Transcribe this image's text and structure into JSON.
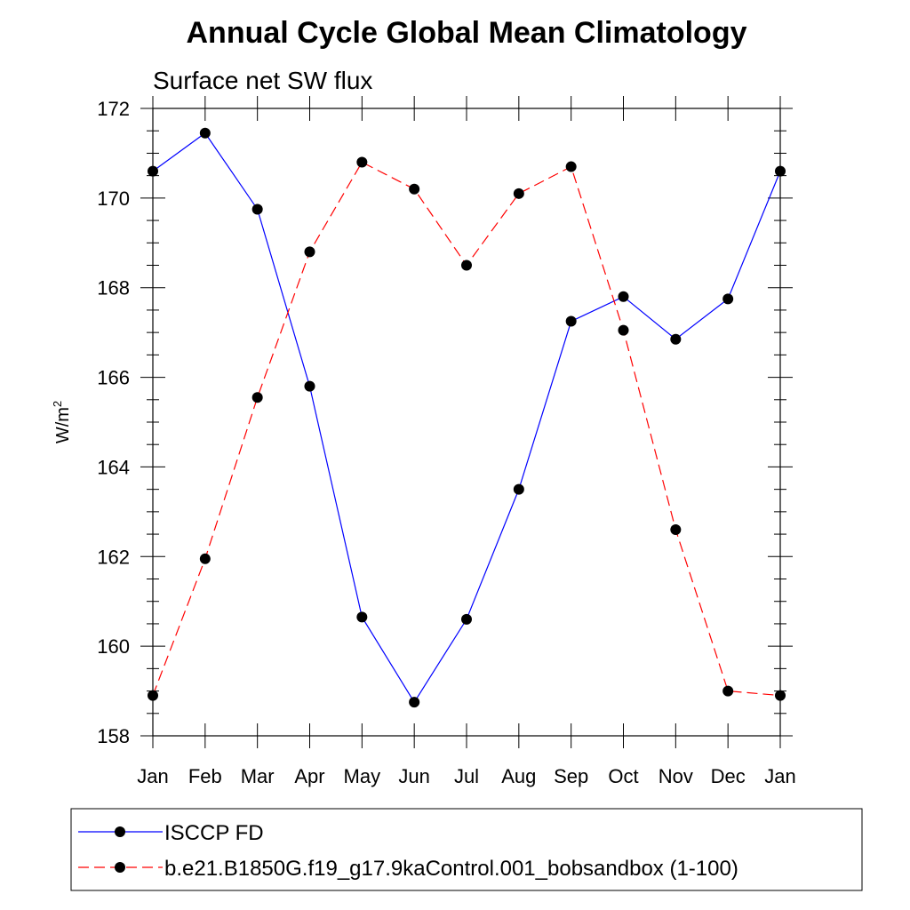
{
  "chart_data": {
    "type": "line",
    "title": "Annual Cycle Global Mean Climatology",
    "subtitle": "Surface net SW flux",
    "ylabel_base": "W/m",
    "ylabel_sup": "2",
    "categories": [
      "Jan",
      "Feb",
      "Mar",
      "Apr",
      "May",
      "Jun",
      "Jul",
      "Aug",
      "Sep",
      "Oct",
      "Nov",
      "Dec",
      "Jan"
    ],
    "ylim": [
      158,
      172
    ],
    "yticks": [
      158,
      160,
      162,
      164,
      166,
      168,
      170,
      172
    ],
    "series": [
      {
        "name": "ISCCP FD",
        "color": "#0000ff",
        "dash": "solid",
        "values": [
          170.6,
          171.45,
          169.75,
          165.8,
          160.65,
          158.75,
          160.6,
          163.5,
          167.25,
          167.8,
          166.85,
          167.75,
          170.6
        ]
      },
      {
        "name": "b.e21.B1850G.f19_g17.9kaControl.001_bobsandbox (1-100)",
        "color": "#ff0000",
        "dash": "dashed",
        "values": [
          158.9,
          161.95,
          165.55,
          168.8,
          170.8,
          170.2,
          168.5,
          170.1,
          170.7,
          167.05,
          162.6,
          159.0,
          158.9
        ]
      }
    ],
    "legend_position": "bottom"
  }
}
